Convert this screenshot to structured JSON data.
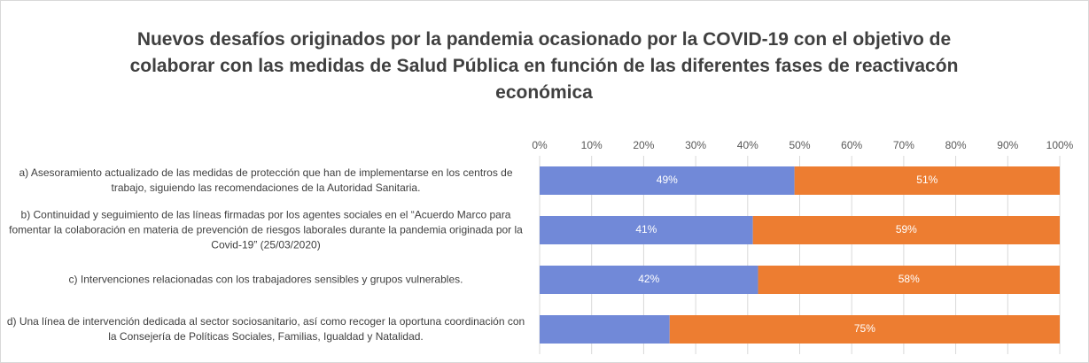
{
  "chart_data": {
    "type": "stacked-barh",
    "title": "Nuevos desafíos originados por la pandemia ocasionado por la COVID-19 con el objetivo de colaborar con las medidas de Salud Pública en función de las diferentes fases de reactivacón económica",
    "categories": [
      "a)   Asesoramiento actualizado de las medidas de protección que han de implementarse en los centros de trabajo, siguiendo las recomendaciones de la Autoridad Sanitaria.",
      "b)   Continuidad y seguimiento de las líneas firmadas por los agentes sociales en el “Acuerdo Marco para fomentar la colaboración en materia de prevención de riesgos laborales durante la pandemia originada por la Covid-19” (25/03/2020)",
      "c) Intervenciones relacionadas con los trabajadores sensibles y grupos vulnerables.",
      "d)  Una línea de intervención dedicada al sector sociosanitario, así como recoger la oportuna coordinación con la Consejería de Políticas Sociales, Familias, Igualdad y Natalidad."
    ],
    "series": [
      {
        "color": "#7189d8",
        "values": [
          49,
          41,
          42,
          25
        ],
        "value_labels": [
          "49%",
          "41%",
          "42%",
          null
        ]
      },
      {
        "color": "#ed7d31",
        "values": [
          51,
          59,
          58,
          75
        ],
        "value_labels": [
          "51%",
          "59%",
          "58%",
          "75%"
        ]
      }
    ],
    "xlim": [
      0,
      100
    ],
    "xticks": [
      {
        "value": 0,
        "label": "0%"
      },
      {
        "value": 10,
        "label": "10%"
      },
      {
        "value": 20,
        "label": "20%"
      },
      {
        "value": 30,
        "label": "30%"
      },
      {
        "value": 40,
        "label": "40%"
      },
      {
        "value": 50,
        "label": "50%"
      },
      {
        "value": 60,
        "label": "60%"
      },
      {
        "value": 70,
        "label": "70%"
      },
      {
        "value": 80,
        "label": "80%"
      },
      {
        "value": 90,
        "label": "90%"
      },
      {
        "value": 100,
        "label": "100%"
      }
    ],
    "grid": true
  }
}
